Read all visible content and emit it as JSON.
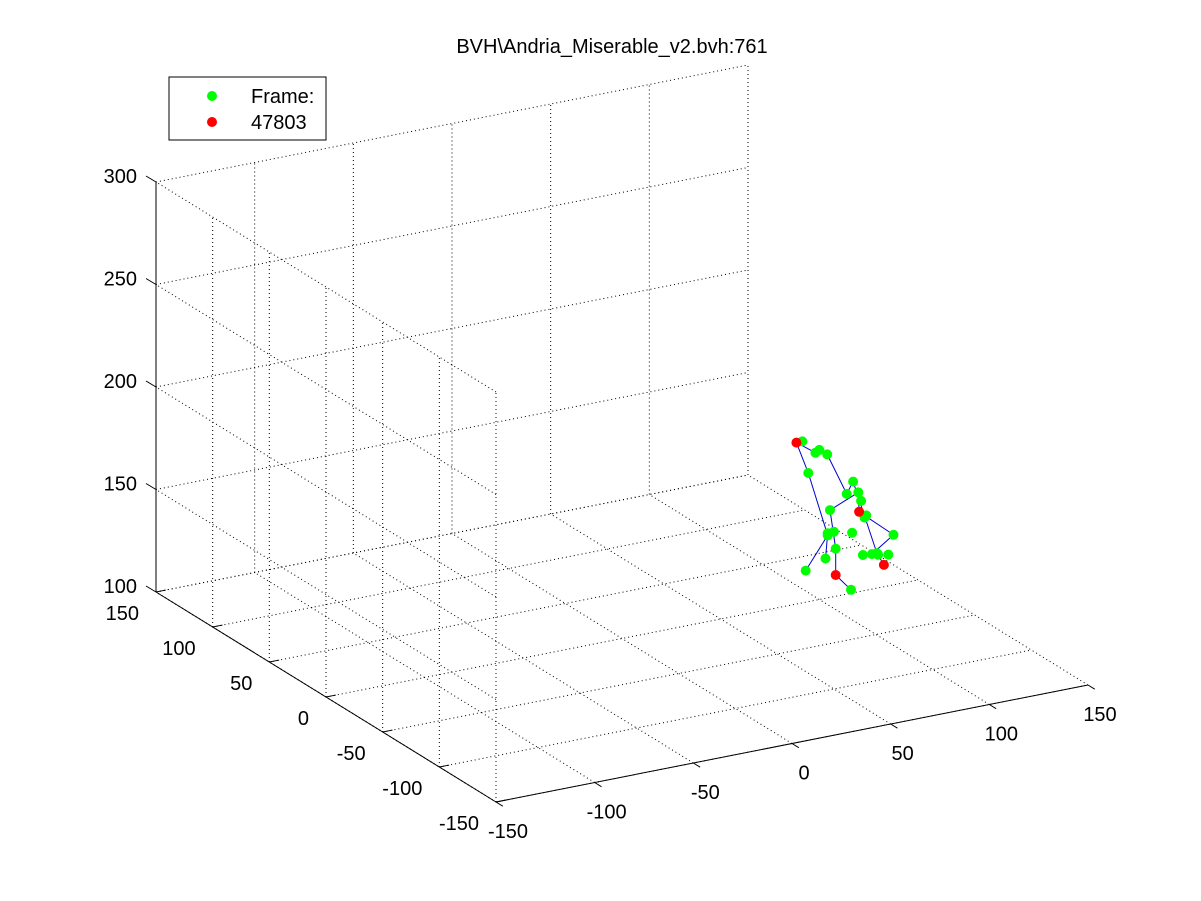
{
  "chart_data": {
    "type": "scatter",
    "title": "BVH\\Andria_Miserable_v2.bvh:761",
    "xlabel": "",
    "ylabel": "",
    "zlabel": "",
    "xlim": [
      -150,
      150
    ],
    "ylim": [
      -150,
      150
    ],
    "zlim": [
      100,
      300
    ],
    "grid": true,
    "legend_position": "top-left",
    "x_ticks": [
      "-150",
      "-100",
      "-50",
      "0",
      "50",
      "100",
      "150"
    ],
    "y_ticks": [
      "-150",
      "-100",
      "-50",
      "0",
      "50",
      "100",
      "150"
    ],
    "z_ticks": [
      "100",
      "150",
      "200",
      "250",
      "300"
    ],
    "legend": [
      {
        "label": "Frame:",
        "color": "#00ff00"
      },
      {
        "label": "47803",
        "color": "#ff0000"
      }
    ],
    "colors": {
      "joints": "#00ff00",
      "end_effectors": "#ff0000",
      "bones": "#0000cc"
    },
    "series": [
      {
        "name": "Frame:",
        "color": "#00ff00",
        "points": [
          [
            100,
            12,
            110
          ],
          [
            108,
            -14,
            108
          ],
          [
            112,
            -8,
            133
          ],
          [
            116,
            -12,
            141
          ],
          [
            110,
            -21,
            127
          ],
          [
            114,
            -22,
            127
          ],
          [
            116,
            -24,
            127
          ],
          [
            120,
            -26,
            127
          ],
          [
            110,
            10,
            127
          ],
          [
            110,
            10,
            126
          ],
          [
            106,
            -4,
            125
          ],
          [
            103,
            15,
            156
          ],
          [
            100,
            15,
            172
          ],
          [
            98,
            0,
            172
          ],
          [
            100,
            0,
            173
          ],
          [
            104,
            0,
            170
          ],
          [
            115,
            2,
            148
          ],
          [
            120,
            5,
            152
          ],
          [
            114,
            -10,
            153
          ],
          [
            110,
            8,
            139
          ],
          [
            112,
            8,
            128
          ],
          [
            118,
            -10,
            141
          ],
          [
            120,
            -2,
            145
          ],
          [
            110,
            12,
            114
          ],
          [
            128,
            -2,
            118
          ],
          [
            133,
            -8,
            128
          ]
        ]
      },
      {
        "name": "47803",
        "color": "#ff0000",
        "points": [
          [
            110,
            3,
            109
          ],
          [
            131,
            -3,
            112
          ],
          [
            115,
            -9,
            143
          ],
          [
            97,
            15,
            172
          ]
        ]
      }
    ],
    "skeleton": [
      [
        [
          100,
          12,
          110
        ],
        [
          110,
          10,
          126
        ],
        [
          103,
          15,
          156
        ],
        [
          97,
          15,
          172
        ],
        [
          98,
          0,
          172
        ],
        [
          100,
          0,
          173
        ],
        [
          104,
          0,
          170
        ],
        [
          115,
          2,
          148
        ],
        [
          120,
          5,
          152
        ],
        [
          128,
          -2,
          118
        ],
        [
          131,
          -3,
          112
        ]
      ],
      [
        [
          108,
          -14,
          108
        ],
        [
          110,
          3,
          109
        ],
        [
          106,
          -4,
          125
        ],
        [
          110,
          8,
          139
        ],
        [
          114,
          -10,
          153
        ],
        [
          115,
          -9,
          143
        ],
        [
          133,
          -8,
          128
        ],
        [
          114,
          -22,
          127
        ]
      ],
      [
        [
          110,
          10,
          127
        ],
        [
          110,
          12,
          114
        ]
      ]
    ]
  }
}
